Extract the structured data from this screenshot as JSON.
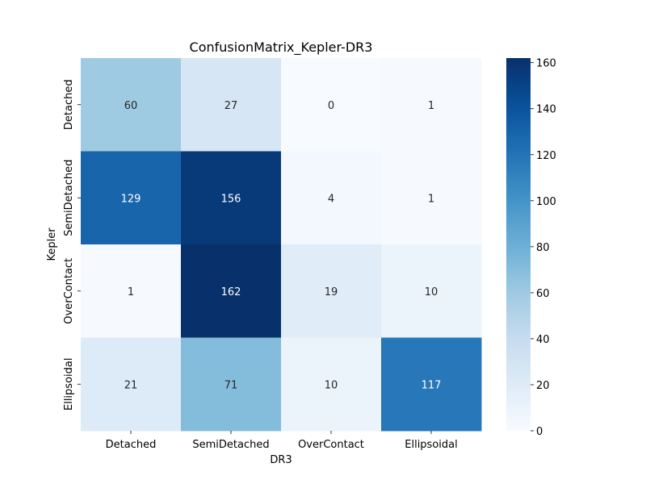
{
  "chart_data": {
    "type": "heatmap",
    "title": "ConfusionMatrix_Kepler-DR3",
    "xlabel": "DR3",
    "ylabel": "Kepler",
    "x_categories": [
      "Detached",
      "SemiDetached",
      "OverContact",
      "Ellipsoidal"
    ],
    "y_categories": [
      "Detached",
      "SemiDetached",
      "OverContact",
      "Ellipsoidal"
    ],
    "values": [
      [
        60,
        27,
        0,
        1
      ],
      [
        129,
        156,
        4,
        1
      ],
      [
        1,
        162,
        19,
        10
      ],
      [
        21,
        71,
        10,
        117
      ]
    ],
    "colormap": "Blues",
    "colorbar": {
      "range": [
        0,
        162
      ],
      "ticks": [
        0,
        20,
        40,
        60,
        80,
        100,
        120,
        140,
        160
      ]
    },
    "colors": {
      "low": "#f7fbff",
      "high": "#08306b"
    }
  }
}
